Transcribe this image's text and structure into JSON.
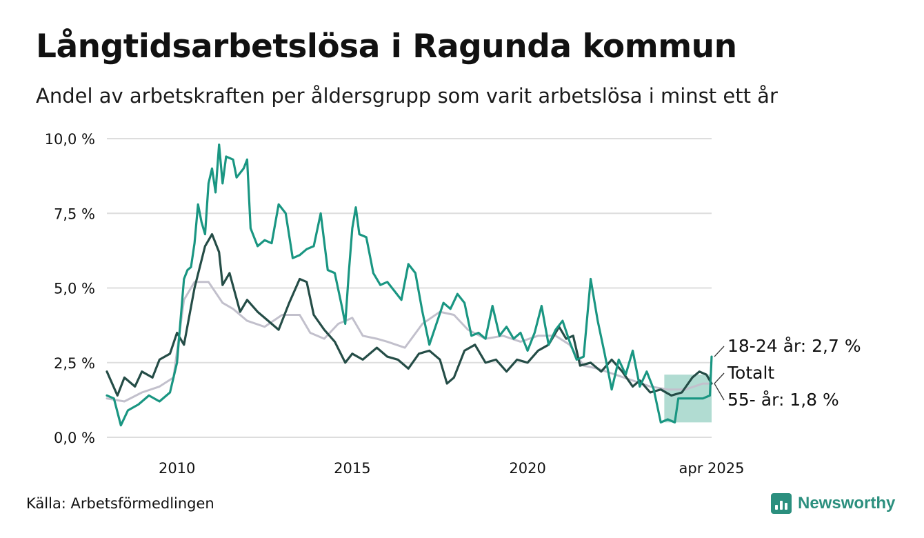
{
  "title": "Långtidsarbetslösa i Ragunda kommun",
  "subtitle": "Andel av arbetskraften per åldersgrupp som varit arbetslösa i minst ett år",
  "source": "Källa: Arbetsförmedlingen",
  "brand": "Newsworthy",
  "colors": {
    "youth": "#1a9682",
    "old": "#254d47",
    "total": "#c2c0cc",
    "band": "#a8d8cd",
    "grid": "#dddddd",
    "brand": "#2b8f7e"
  },
  "chart_data": {
    "type": "line",
    "y_ticks": [
      "0,0 %",
      "2,5 %",
      "5,0 %",
      "7,5 %",
      "10,0 %"
    ],
    "ylim": [
      0,
      10
    ],
    "x_ticks": [
      {
        "label": "2010",
        "x": 2010.0
      },
      {
        "label": "2015",
        "x": 2015.0
      },
      {
        "label": "2020",
        "x": 2020.0
      },
      {
        "label": "apr 2025",
        "x": 2025.25
      }
    ],
    "xlim": [
      2008.0,
      2025.25
    ],
    "grid": true,
    "forecast_band": {
      "x_start": 2023.9,
      "x_end": 2025.25,
      "lower": 0.5,
      "upper": 2.1
    },
    "series": [
      {
        "key": "total",
        "end_label": "Totalt",
        "points": [
          [
            2008.0,
            1.3
          ],
          [
            2008.5,
            1.2
          ],
          [
            2009.0,
            1.5
          ],
          [
            2009.5,
            1.7
          ],
          [
            2009.9,
            2.0
          ],
          [
            2010.2,
            4.6
          ],
          [
            2010.5,
            5.2
          ],
          [
            2010.9,
            5.2
          ],
          [
            2011.3,
            4.5
          ],
          [
            2011.6,
            4.3
          ],
          [
            2012.0,
            3.9
          ],
          [
            2012.5,
            3.7
          ],
          [
            2013.0,
            4.1
          ],
          [
            2013.5,
            4.1
          ],
          [
            2013.8,
            3.5
          ],
          [
            2014.2,
            3.3
          ],
          [
            2014.6,
            3.8
          ],
          [
            2015.0,
            4.0
          ],
          [
            2015.3,
            3.4
          ],
          [
            2015.7,
            3.3
          ],
          [
            2016.0,
            3.2
          ],
          [
            2016.5,
            3.0
          ],
          [
            2017.0,
            3.8
          ],
          [
            2017.5,
            4.2
          ],
          [
            2017.9,
            4.1
          ],
          [
            2018.3,
            3.6
          ],
          [
            2018.8,
            3.3
          ],
          [
            2019.3,
            3.4
          ],
          [
            2019.8,
            3.2
          ],
          [
            2020.3,
            3.4
          ],
          [
            2020.8,
            3.4
          ],
          [
            2021.2,
            3.1
          ],
          [
            2021.6,
            2.4
          ],
          [
            2022.0,
            2.3
          ],
          [
            2022.5,
            2.1
          ],
          [
            2023.0,
            1.9
          ],
          [
            2023.5,
            1.7
          ],
          [
            2024.0,
            1.6
          ],
          [
            2024.5,
            1.6
          ],
          [
            2025.0,
            1.8
          ],
          [
            2025.25,
            1.8
          ]
        ]
      },
      {
        "key": "old",
        "end_label": "55- år: 1,8 %",
        "points": [
          [
            2008.0,
            2.2
          ],
          [
            2008.3,
            1.4
          ],
          [
            2008.5,
            2.0
          ],
          [
            2008.8,
            1.7
          ],
          [
            2009.0,
            2.2
          ],
          [
            2009.3,
            2.0
          ],
          [
            2009.5,
            2.6
          ],
          [
            2009.8,
            2.8
          ],
          [
            2010.0,
            3.5
          ],
          [
            2010.2,
            3.1
          ],
          [
            2010.5,
            5.0
          ],
          [
            2010.8,
            6.4
          ],
          [
            2011.0,
            6.8
          ],
          [
            2011.2,
            6.2
          ],
          [
            2011.3,
            5.1
          ],
          [
            2011.5,
            5.5
          ],
          [
            2011.8,
            4.2
          ],
          [
            2012.0,
            4.6
          ],
          [
            2012.3,
            4.2
          ],
          [
            2012.6,
            3.9
          ],
          [
            2012.9,
            3.6
          ],
          [
            2013.2,
            4.5
          ],
          [
            2013.5,
            5.3
          ],
          [
            2013.7,
            5.2
          ],
          [
            2013.9,
            4.1
          ],
          [
            2014.2,
            3.6
          ],
          [
            2014.5,
            3.2
          ],
          [
            2014.8,
            2.5
          ],
          [
            2015.0,
            2.8
          ],
          [
            2015.3,
            2.6
          ],
          [
            2015.7,
            3.0
          ],
          [
            2016.0,
            2.7
          ],
          [
            2016.3,
            2.6
          ],
          [
            2016.6,
            2.3
          ],
          [
            2016.9,
            2.8
          ],
          [
            2017.2,
            2.9
          ],
          [
            2017.5,
            2.6
          ],
          [
            2017.7,
            1.8
          ],
          [
            2017.9,
            2.0
          ],
          [
            2018.2,
            2.9
          ],
          [
            2018.5,
            3.1
          ],
          [
            2018.8,
            2.5
          ],
          [
            2019.1,
            2.6
          ],
          [
            2019.4,
            2.2
          ],
          [
            2019.7,
            2.6
          ],
          [
            2020.0,
            2.5
          ],
          [
            2020.3,
            2.9
          ],
          [
            2020.6,
            3.1
          ],
          [
            2020.9,
            3.7
          ],
          [
            2021.1,
            3.3
          ],
          [
            2021.3,
            3.4
          ],
          [
            2021.5,
            2.4
          ],
          [
            2021.8,
            2.5
          ],
          [
            2022.1,
            2.2
          ],
          [
            2022.4,
            2.6
          ],
          [
            2022.7,
            2.2
          ],
          [
            2023.0,
            1.7
          ],
          [
            2023.2,
            1.9
          ],
          [
            2023.5,
            1.5
          ],
          [
            2023.8,
            1.6
          ],
          [
            2024.1,
            1.4
          ],
          [
            2024.4,
            1.5
          ],
          [
            2024.7,
            2.0
          ],
          [
            2024.9,
            2.2
          ],
          [
            2025.1,
            2.1
          ],
          [
            2025.25,
            1.8
          ]
        ]
      },
      {
        "key": "youth",
        "end_label": "18-24 år: 2,7 %",
        "points": [
          [
            2008.0,
            1.4
          ],
          [
            2008.2,
            1.3
          ],
          [
            2008.4,
            0.4
          ],
          [
            2008.6,
            0.9
          ],
          [
            2008.9,
            1.1
          ],
          [
            2009.2,
            1.4
          ],
          [
            2009.5,
            1.2
          ],
          [
            2009.8,
            1.5
          ],
          [
            2010.0,
            2.5
          ],
          [
            2010.2,
            5.3
          ],
          [
            2010.3,
            5.6
          ],
          [
            2010.4,
            5.7
          ],
          [
            2010.5,
            6.5
          ],
          [
            2010.6,
            7.8
          ],
          [
            2010.7,
            7.2
          ],
          [
            2010.8,
            6.8
          ],
          [
            2010.9,
            8.5
          ],
          [
            2011.0,
            9.0
          ],
          [
            2011.1,
            8.2
          ],
          [
            2011.2,
            9.8
          ],
          [
            2011.3,
            8.5
          ],
          [
            2011.4,
            9.4
          ],
          [
            2011.6,
            9.3
          ],
          [
            2011.7,
            8.7
          ],
          [
            2011.9,
            9.0
          ],
          [
            2012.0,
            9.3
          ],
          [
            2012.1,
            7.0
          ],
          [
            2012.3,
            6.4
          ],
          [
            2012.5,
            6.6
          ],
          [
            2012.7,
            6.5
          ],
          [
            2012.9,
            7.8
          ],
          [
            2013.1,
            7.5
          ],
          [
            2013.3,
            6.0
          ],
          [
            2013.5,
            6.1
          ],
          [
            2013.7,
            6.3
          ],
          [
            2013.9,
            6.4
          ],
          [
            2014.1,
            7.5
          ],
          [
            2014.3,
            5.6
          ],
          [
            2014.5,
            5.5
          ],
          [
            2014.7,
            4.4
          ],
          [
            2014.8,
            3.8
          ],
          [
            2014.9,
            5.5
          ],
          [
            2015.0,
            7.0
          ],
          [
            2015.1,
            7.7
          ],
          [
            2015.2,
            6.8
          ],
          [
            2015.4,
            6.7
          ],
          [
            2015.6,
            5.5
          ],
          [
            2015.8,
            5.1
          ],
          [
            2016.0,
            5.2
          ],
          [
            2016.2,
            4.9
          ],
          [
            2016.4,
            4.6
          ],
          [
            2016.6,
            5.8
          ],
          [
            2016.8,
            5.5
          ],
          [
            2017.0,
            4.2
          ],
          [
            2017.2,
            3.1
          ],
          [
            2017.4,
            3.8
          ],
          [
            2017.6,
            4.5
          ],
          [
            2017.8,
            4.3
          ],
          [
            2018.0,
            4.8
          ],
          [
            2018.2,
            4.5
          ],
          [
            2018.4,
            3.4
          ],
          [
            2018.6,
            3.5
          ],
          [
            2018.8,
            3.3
          ],
          [
            2019.0,
            4.4
          ],
          [
            2019.2,
            3.4
          ],
          [
            2019.4,
            3.7
          ],
          [
            2019.6,
            3.3
          ],
          [
            2019.8,
            3.5
          ],
          [
            2020.0,
            2.9
          ],
          [
            2020.2,
            3.5
          ],
          [
            2020.4,
            4.4
          ],
          [
            2020.6,
            3.1
          ],
          [
            2020.8,
            3.6
          ],
          [
            2021.0,
            3.9
          ],
          [
            2021.2,
            3.2
          ],
          [
            2021.4,
            2.6
          ],
          [
            2021.6,
            2.7
          ],
          [
            2021.8,
            5.3
          ],
          [
            2022.0,
            3.9
          ],
          [
            2022.2,
            2.8
          ],
          [
            2022.4,
            1.6
          ],
          [
            2022.6,
            2.6
          ],
          [
            2022.8,
            2.1
          ],
          [
            2023.0,
            2.9
          ],
          [
            2023.2,
            1.7
          ],
          [
            2023.4,
            2.2
          ],
          [
            2023.6,
            1.6
          ],
          [
            2023.8,
            0.5
          ],
          [
            2024.0,
            0.6
          ],
          [
            2024.2,
            0.5
          ],
          [
            2024.3,
            1.3
          ],
          [
            2024.7,
            1.3
          ],
          [
            2025.0,
            1.3
          ],
          [
            2025.2,
            1.4
          ],
          [
            2025.25,
            2.7
          ]
        ]
      }
    ]
  }
}
